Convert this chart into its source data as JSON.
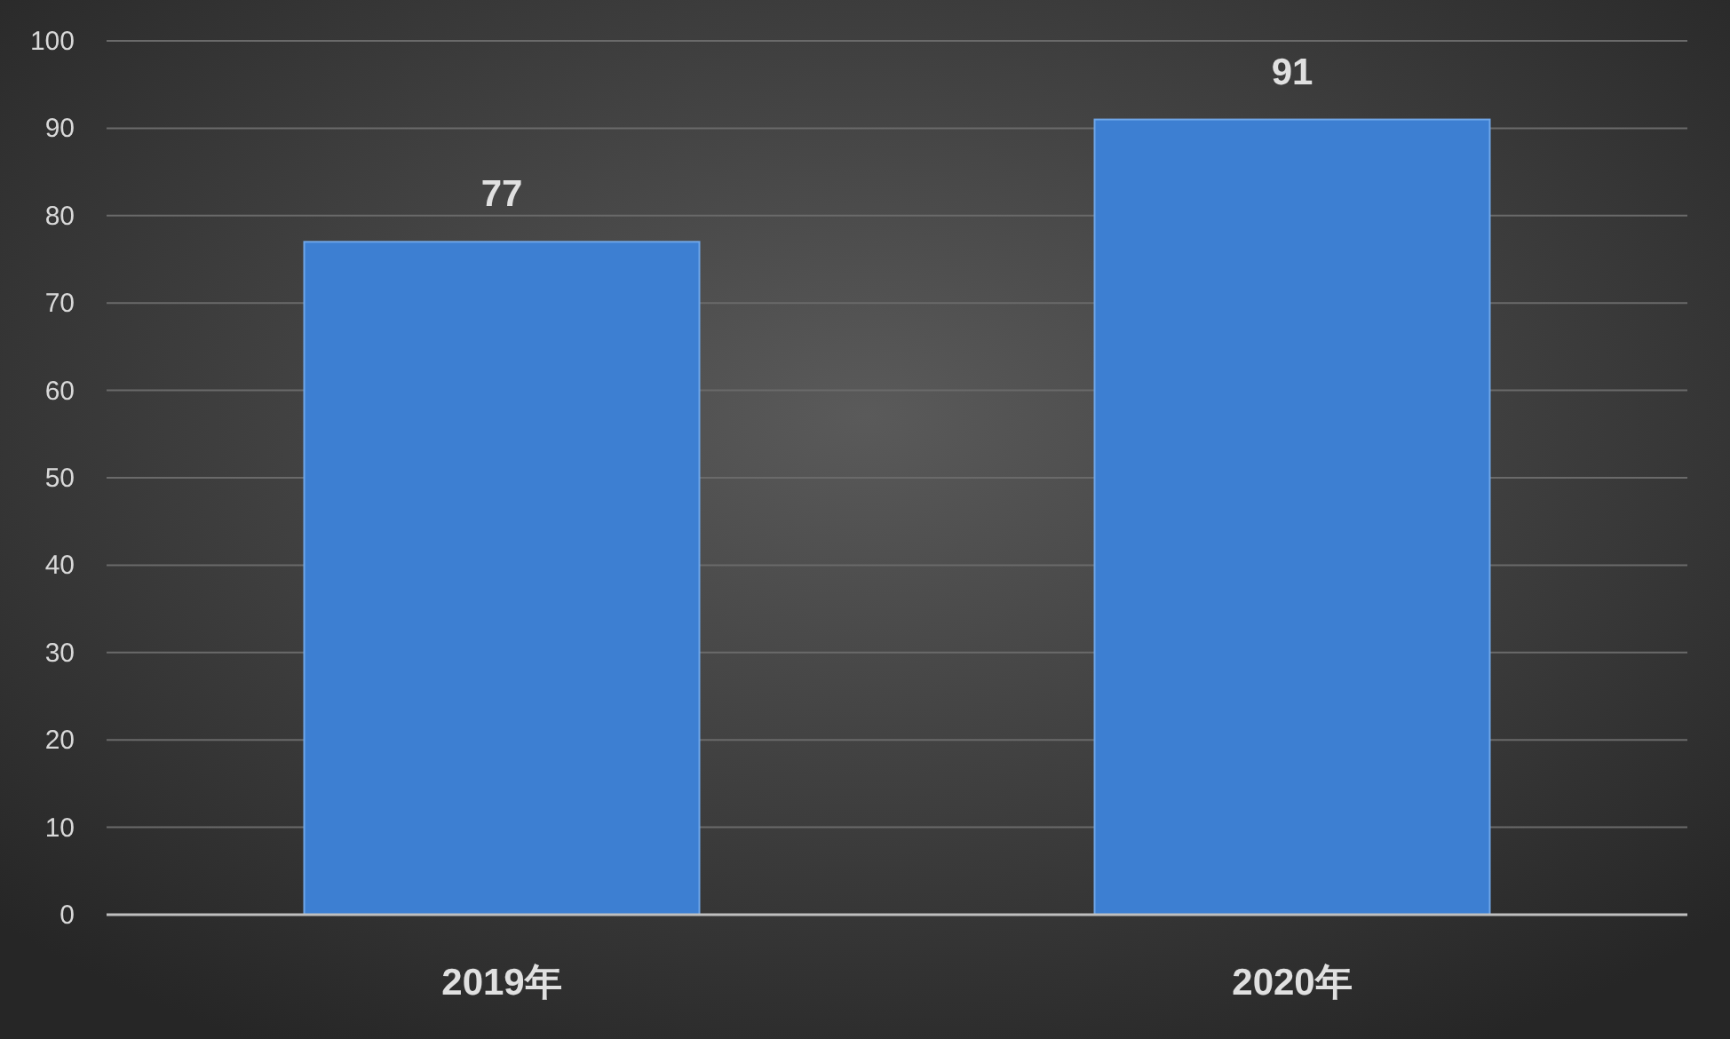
{
  "chart_data": {
    "type": "bar",
    "categories": [
      "2019年",
      "2020年"
    ],
    "values": [
      77,
      91
    ],
    "color": "#3d7fd2",
    "ylim": [
      0,
      100
    ],
    "yticks": [
      0,
      10,
      20,
      30,
      40,
      50,
      60,
      70,
      80,
      90,
      100
    ],
    "grid": "y",
    "data_labels": true
  }
}
